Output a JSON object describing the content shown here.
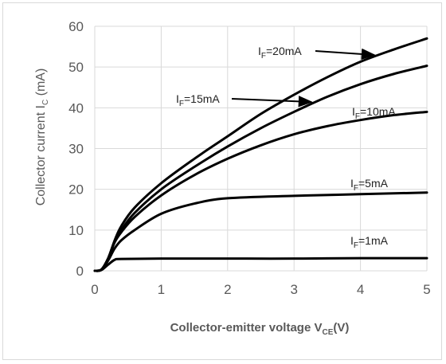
{
  "chart_data": {
    "type": "line",
    "title": "",
    "xlabel": {
      "main": "Collector-emitter voltage V",
      "sub": "CE",
      "tail": "(V)"
    },
    "ylabel": {
      "main": "Collector current I",
      "sub": "C",
      "tail": " (mA)"
    },
    "xlim": [
      0,
      5
    ],
    "ylim": [
      0,
      60
    ],
    "xticks": [
      "0",
      "1",
      "2",
      "3",
      "4",
      "5"
    ],
    "yticks": [
      "0",
      "10",
      "20",
      "30",
      "40",
      "50",
      "60"
    ],
    "grid": true,
    "legend": "none",
    "series_color": "#000000",
    "series": [
      {
        "label": {
          "main": "I",
          "sub": "F",
          "tail": "=1mA"
        },
        "points": [
          [
            0,
            0
          ],
          [
            0.1,
            0.2
          ],
          [
            0.2,
            1.5
          ],
          [
            0.3,
            2.7
          ],
          [
            0.4,
            2.9
          ],
          [
            1,
            3.0
          ],
          [
            2,
            3.0
          ],
          [
            3,
            3.0
          ],
          [
            4,
            3.1
          ],
          [
            5,
            3.1
          ]
        ]
      },
      {
        "label": {
          "main": "I",
          "sub": "F",
          "tail": "=5mA"
        },
        "points": [
          [
            0,
            0
          ],
          [
            0.1,
            0.3
          ],
          [
            0.2,
            2.5
          ],
          [
            0.3,
            5.5
          ],
          [
            0.4,
            7.5
          ],
          [
            0.6,
            10
          ],
          [
            1,
            14
          ],
          [
            1.5,
            16.5
          ],
          [
            2,
            17.8
          ],
          [
            3,
            18.4
          ],
          [
            4,
            18.8
          ],
          [
            5,
            19.2
          ]
        ]
      },
      {
        "label": {
          "main": "I",
          "sub": "F",
          "tail": "=10mA"
        },
        "points": [
          [
            0,
            0
          ],
          [
            0.1,
            0.3
          ],
          [
            0.2,
            3
          ],
          [
            0.3,
            7
          ],
          [
            0.4,
            9.5
          ],
          [
            0.6,
            13.2
          ],
          [
            1,
            18.5
          ],
          [
            1.5,
            23.5
          ],
          [
            2,
            27.5
          ],
          [
            2.5,
            30.8
          ],
          [
            3,
            33.5
          ],
          [
            3.5,
            35.5
          ],
          [
            4,
            37
          ],
          [
            4.5,
            38.2
          ],
          [
            5,
            39
          ]
        ]
      },
      {
        "label": {
          "main": "I",
          "sub": "F",
          "tail": "=15mA"
        },
        "points": [
          [
            0,
            0
          ],
          [
            0.1,
            0.3
          ],
          [
            0.2,
            3
          ],
          [
            0.3,
            7.2
          ],
          [
            0.4,
            10
          ],
          [
            0.6,
            14.2
          ],
          [
            1,
            20
          ],
          [
            1.5,
            25.5
          ],
          [
            2,
            30.5
          ],
          [
            2.5,
            35
          ],
          [
            3,
            39
          ],
          [
            3.5,
            42.7
          ],
          [
            4,
            45.8
          ],
          [
            4.5,
            48.3
          ],
          [
            5,
            50.3
          ]
        ]
      },
      {
        "label": {
          "main": "I",
          "sub": "F",
          "tail": "=20mA"
        },
        "points": [
          [
            0,
            0
          ],
          [
            0.1,
            0.3
          ],
          [
            0.2,
            3
          ],
          [
            0.3,
            7.5
          ],
          [
            0.4,
            11
          ],
          [
            0.6,
            15.5
          ],
          [
            1,
            21.5
          ],
          [
            1.5,
            27.5
          ],
          [
            2,
            33
          ],
          [
            2.5,
            38.5
          ],
          [
            3,
            43.2
          ],
          [
            3.5,
            47.5
          ],
          [
            4,
            51.3
          ],
          [
            4.5,
            54.3
          ],
          [
            5,
            57
          ]
        ]
      }
    ]
  }
}
